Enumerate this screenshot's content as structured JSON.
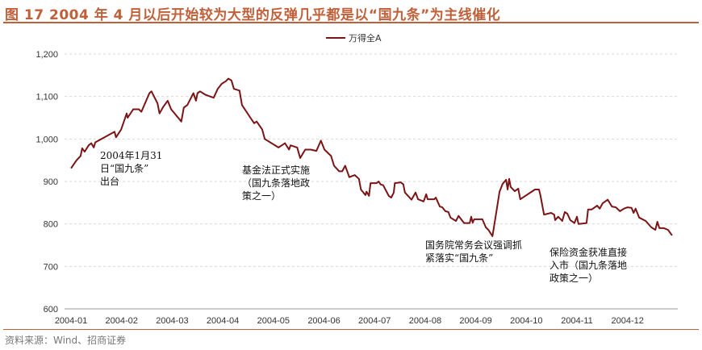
{
  "title": "图 17 2004 年 4 月以后开始较为大型的反弹几乎都是以“国九条”为主线催化",
  "source": "资料来源：Wind、招商证券",
  "colors": {
    "line": "#7b1416",
    "title": "#c0603a",
    "grid": "#d9d9d9"
  },
  "annotations": [
    {
      "text": "2004年1月31\n日“国九条”\n出台"
    },
    {
      "text": "基金法正式实施\n（国九条落地政\n策之一）"
    },
    {
      "text": "国务院常务会议强调抓\n紧落实“国九条”"
    },
    {
      "text": "保险资金获准直接\n入市（国九条落地\n政策之一）"
    }
  ],
  "chart_data": {
    "type": "line",
    "title": "图 17 2004 年 4 月以后开始较为大型的反弹几乎都是以“国九条”为主线催化",
    "xlabel": "",
    "ylabel": "",
    "ylim": [
      600,
      1200
    ],
    "yticks": [
      600,
      700,
      800,
      900,
      1000,
      1100,
      1200
    ],
    "ytick_labels": [
      "600",
      "700",
      "800",
      "900",
      "1,000",
      "1,100",
      "1,200"
    ],
    "xticks": [
      "2004-01",
      "2004-02",
      "2004-03",
      "2004-04",
      "2004-05",
      "2004-06",
      "2004-07",
      "2004-08",
      "2004-09",
      "2004-10",
      "2004-11",
      "2004-12"
    ],
    "x_unit": "months since 2004-01",
    "grid": "horizontal dashed",
    "legend": "top-center",
    "series": [
      {
        "name": "万得全A",
        "points": [
          [
            0.0,
            931
          ],
          [
            0.11,
            950
          ],
          [
            0.19,
            960
          ],
          [
            0.22,
            978
          ],
          [
            0.27,
            970
          ],
          [
            0.35,
            985
          ],
          [
            0.4,
            990
          ],
          [
            0.45,
            980
          ],
          [
            0.48,
            992
          ],
          [
            0.86,
            1017
          ],
          [
            0.89,
            1004
          ],
          [
            0.99,
            1022
          ],
          [
            1.1,
            1060
          ],
          [
            1.12,
            1050
          ],
          [
            1.23,
            1070
          ],
          [
            1.34,
            1070
          ],
          [
            1.39,
            1064
          ],
          [
            1.55,
            1108
          ],
          [
            1.59,
            1112
          ],
          [
            1.71,
            1084
          ],
          [
            1.75,
            1060
          ],
          [
            1.82,
            1075
          ],
          [
            1.91,
            1090
          ],
          [
            1.98,
            1070
          ],
          [
            2.18,
            1041
          ],
          [
            2.23,
            1074
          ],
          [
            2.3,
            1080
          ],
          [
            2.42,
            1108
          ],
          [
            2.47,
            1090
          ],
          [
            2.5,
            1108
          ],
          [
            2.55,
            1112
          ],
          [
            2.66,
            1104
          ],
          [
            2.82,
            1097
          ],
          [
            2.9,
            1118
          ],
          [
            2.98,
            1130
          ],
          [
            3.06,
            1136
          ],
          [
            3.11,
            1142
          ],
          [
            3.17,
            1138
          ],
          [
            3.22,
            1118
          ],
          [
            3.33,
            1114
          ],
          [
            3.38,
            1080
          ],
          [
            3.54,
            1051
          ],
          [
            3.62,
            1037
          ],
          [
            3.67,
            1041
          ],
          [
            3.78,
            1022
          ],
          [
            3.83,
            1000
          ],
          [
            4.1,
            980
          ],
          [
            4.23,
            990
          ],
          [
            4.31,
            975
          ],
          [
            4.34,
            985
          ],
          [
            4.47,
            980
          ],
          [
            4.53,
            955
          ],
          [
            4.63,
            975
          ],
          [
            4.74,
            975
          ],
          [
            4.85,
            972
          ],
          [
            4.94,
            996
          ],
          [
            5.01,
            975
          ],
          [
            5.14,
            960
          ],
          [
            5.2,
            937
          ],
          [
            5.3,
            924
          ],
          [
            5.36,
            924
          ],
          [
            5.42,
            937
          ],
          [
            5.5,
            910
          ],
          [
            5.61,
            915
          ],
          [
            5.69,
            906
          ],
          [
            5.73,
            881
          ],
          [
            5.82,
            868
          ],
          [
            5.84,
            876
          ],
          [
            5.89,
            866
          ],
          [
            5.92,
            896
          ],
          [
            6.04,
            896
          ],
          [
            6.08,
            900
          ],
          [
            6.12,
            893
          ],
          [
            6.17,
            891
          ],
          [
            6.28,
            866
          ],
          [
            6.33,
            862
          ],
          [
            6.38,
            874
          ],
          [
            6.4,
            896
          ],
          [
            6.52,
            898
          ],
          [
            6.57,
            893
          ],
          [
            6.6,
            874
          ],
          [
            6.73,
            857
          ],
          [
            6.81,
            874
          ],
          [
            6.86,
            858
          ],
          [
            6.97,
            853
          ],
          [
            7.02,
            870
          ],
          [
            7.05,
            858
          ],
          [
            7.18,
            858
          ],
          [
            7.21,
            862
          ],
          [
            7.29,
            841
          ],
          [
            7.34,
            839
          ],
          [
            7.4,
            830
          ],
          [
            7.46,
            828
          ],
          [
            7.5,
            815
          ],
          [
            7.61,
            807
          ],
          [
            7.66,
            819
          ],
          [
            7.77,
            802
          ],
          [
            7.88,
            802
          ],
          [
            7.91,
            817
          ],
          [
            7.94,
            803
          ],
          [
            7.97,
            811
          ],
          [
            8.13,
            811
          ],
          [
            8.2,
            792
          ],
          [
            8.25,
            786
          ],
          [
            8.33,
            771
          ],
          [
            8.41,
            830
          ],
          [
            8.47,
            876
          ],
          [
            8.53,
            894
          ],
          [
            8.6,
            904
          ],
          [
            8.63,
            881
          ],
          [
            8.66,
            906
          ],
          [
            8.69,
            887
          ],
          [
            8.77,
            877
          ],
          [
            8.84,
            883
          ],
          [
            8.88,
            858
          ],
          [
            9.17,
            881
          ],
          [
            9.25,
            881
          ],
          [
            9.28,
            866
          ],
          [
            9.35,
            822
          ],
          [
            9.49,
            826
          ],
          [
            9.55,
            822
          ],
          [
            9.57,
            809
          ],
          [
            9.63,
            817
          ],
          [
            9.71,
            807
          ],
          [
            9.76,
            828
          ],
          [
            9.81,
            824
          ],
          [
            9.87,
            809
          ],
          [
            9.95,
            802
          ],
          [
            10.0,
            817
          ],
          [
            10.03,
            800
          ],
          [
            10.19,
            802
          ],
          [
            10.22,
            834
          ],
          [
            10.29,
            834
          ],
          [
            10.4,
            843
          ],
          [
            10.45,
            836
          ],
          [
            10.51,
            849
          ],
          [
            10.61,
            857
          ],
          [
            10.69,
            841
          ],
          [
            10.77,
            839
          ],
          [
            10.85,
            830
          ],
          [
            10.93,
            836
          ],
          [
            11.0,
            839
          ],
          [
            11.08,
            838
          ],
          [
            11.12,
            826
          ],
          [
            11.16,
            836
          ],
          [
            11.23,
            815
          ],
          [
            11.36,
            807
          ],
          [
            11.47,
            792
          ],
          [
            11.55,
            786
          ],
          [
            11.59,
            805
          ],
          [
            11.63,
            790
          ],
          [
            11.72,
            790
          ],
          [
            11.8,
            786
          ],
          [
            11.88,
            773
          ]
        ]
      }
    ]
  }
}
